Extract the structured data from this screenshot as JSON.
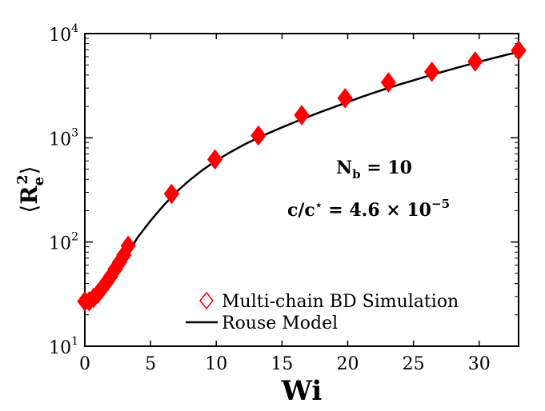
{
  "chart_data": {
    "type": "scatter",
    "title": "",
    "xlabel": "Wi",
    "ylabel": "⟨R_e^2⟩",
    "ylabel_parts": {
      "base": "R",
      "sub": "e",
      "sup": "2"
    },
    "x_scale": "linear",
    "y_scale": "log",
    "xlim": [
      0,
      33
    ],
    "ylim": [
      10,
      10000
    ],
    "x_ticks": [
      0,
      5,
      10,
      15,
      20,
      25,
      30
    ],
    "x_tick_labels": [
      "0",
      "5",
      "10",
      "15",
      "20",
      "25",
      "30"
    ],
    "y_ticks": [
      10,
      100,
      1000,
      10000
    ],
    "y_tick_labels": [
      {
        "base": "10",
        "exp": "1"
      },
      {
        "base": "10",
        "exp": "2"
      },
      {
        "base": "10",
        "exp": "3"
      },
      {
        "base": "10",
        "exp": "4"
      }
    ],
    "grid": false,
    "legend_position": "bottom-right",
    "series": [
      {
        "name": "Multi-chain BD Simulation",
        "kind": "scatter",
        "marker": "diamond",
        "color": "#ff0000",
        "x": [
          0.0,
          0.33,
          0.66,
          1.0,
          1.32,
          1.65,
          1.98,
          2.31,
          2.64,
          2.97,
          3.3,
          6.6,
          9.9,
          13.2,
          16.5,
          19.8,
          23.1,
          26.4,
          29.7,
          33.0
        ],
        "y": [
          27,
          27,
          29,
          32,
          36,
          41,
          47,
          55,
          64,
          75,
          92,
          290,
          620,
          1050,
          1650,
          2400,
          3400,
          4300,
          5400,
          6900
        ]
      },
      {
        "name": "Rouse Model",
        "kind": "line",
        "color": "#000000",
        "x": [
          0.0,
          0.5,
          1.0,
          1.5,
          2.0,
          2.5,
          3.0,
          4.0,
          5.0,
          6.0,
          7.0,
          8.0,
          9.0,
          10.0,
          11.0,
          12.0,
          13.0,
          14.0,
          15.0,
          16.0,
          17.0,
          18.0,
          19.0,
          20.0,
          21.0,
          22.0,
          23.0,
          24.0,
          25.0,
          26.0,
          27.0,
          28.0,
          29.0,
          30.0,
          31.0,
          32.0,
          33.0
        ],
        "y": [
          27,
          28,
          31,
          36,
          44,
          55,
          68,
          110,
          160,
          225,
          305,
          395,
          495,
          605,
          720,
          845,
          975,
          1110,
          1260,
          1420,
          1590,
          1780,
          1980,
          2200,
          2450,
          2710,
          2980,
          3270,
          3560,
          3880,
          4220,
          4580,
          4960,
          5360,
          5780,
          6220,
          6680
        ]
      }
    ],
    "annotations": [
      {
        "label": "N_b = 10",
        "base": "N",
        "sub": "b",
        "rest": " = 10"
      },
      {
        "label": "c/c* = 4.6 × 10^-5",
        "lead": "c/c",
        "star": "⋆",
        "rest": " = 4.6 × 10",
        "exp": "−5"
      }
    ]
  }
}
